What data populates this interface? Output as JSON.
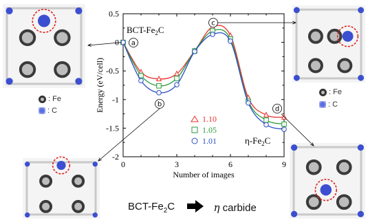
{
  "chart_data": {
    "type": "line",
    "xlabel": "Number of images",
    "ylabel": "Energy (eV/cell)",
    "xlim": [
      0,
      9
    ],
    "ylim": [
      -2,
      0.5
    ],
    "xticks": [
      "0",
      "3",
      "6",
      "9"
    ],
    "yticks": [
      "0.5",
      "0",
      "-0.5",
      "-1",
      "-1.5",
      "-2"
    ],
    "x": [
      0,
      1,
      2,
      3,
      4,
      5,
      6,
      7,
      8,
      9
    ],
    "series": [
      {
        "name": "1.10",
        "marker": "triangle",
        "color": "#e8302a",
        "values": [
          0,
          -0.52,
          -0.64,
          -0.55,
          -0.15,
          0.27,
          0.12,
          -0.97,
          -1.27,
          -1.31
        ]
      },
      {
        "name": "1.05",
        "marker": "square",
        "color": "#2a9a3a",
        "values": [
          0,
          -0.58,
          -0.76,
          -0.63,
          -0.15,
          0.2,
          0.06,
          -1.03,
          -1.36,
          -1.43
        ]
      },
      {
        "name": "1.01",
        "marker": "circle",
        "color": "#2a4ec4",
        "values": [
          0,
          -0.67,
          -0.88,
          -0.74,
          -0.16,
          0.14,
          0.02,
          -1.06,
          -1.44,
          -1.52
        ]
      }
    ],
    "annotations": {
      "start_label": "BCT-Fe",
      "start_sub": "2",
      "start_end": "C",
      "end_label": "η-Fe",
      "end_sub": "2",
      "end_end": "C",
      "markers": [
        "a",
        "b",
        "c",
        "d"
      ]
    },
    "legend_position": "lower-middle"
  },
  "captions": {
    "fe": ": Fe",
    "c": ": C",
    "bottom_left": "BCT-Fe",
    "bottom_sub": "2",
    "bottom_end": "C",
    "bottom_right_symbol": "η",
    "bottom_right": " carbide"
  },
  "colors": {
    "fe_atom": "#3a3a3a",
    "c_atom": "#3b4fd0",
    "highlight": "#e02020"
  }
}
